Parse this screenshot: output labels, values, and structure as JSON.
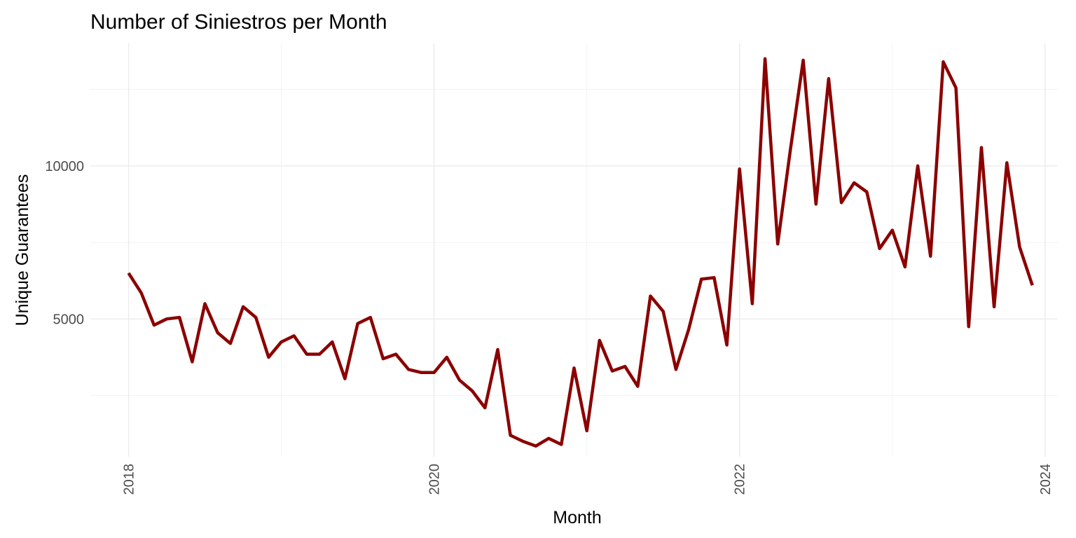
{
  "chart_data": {
    "type": "line",
    "title": "Number of Siniestros per Month",
    "xlabel": "Month",
    "ylabel": "Unique Guarantees",
    "line_color": "#8b0000",
    "grid": true,
    "legend": "none",
    "x_range": [
      "2017-10",
      "2024-02"
    ],
    "ylim": [
      500,
      14000
    ],
    "x_ticks": [
      "2018",
      "2020",
      "2022",
      "2024"
    ],
    "y_ticks": [
      5000,
      10000
    ],
    "x": [
      "2018-01",
      "2018-02",
      "2018-03",
      "2018-04",
      "2018-05",
      "2018-06",
      "2018-07",
      "2018-08",
      "2018-09",
      "2018-10",
      "2018-11",
      "2018-12",
      "2019-01",
      "2019-02",
      "2019-03",
      "2019-04",
      "2019-05",
      "2019-06",
      "2019-07",
      "2019-08",
      "2019-09",
      "2019-10",
      "2019-11",
      "2019-12",
      "2020-01",
      "2020-02",
      "2020-03",
      "2020-04",
      "2020-05",
      "2020-06",
      "2020-07",
      "2020-08",
      "2020-09",
      "2020-10",
      "2020-11",
      "2020-12",
      "2021-01",
      "2021-02",
      "2021-03",
      "2021-04",
      "2021-05",
      "2021-06",
      "2021-07",
      "2021-08",
      "2021-09",
      "2021-10",
      "2021-11",
      "2021-12",
      "2022-01",
      "2022-02",
      "2022-03",
      "2022-04",
      "2022-05",
      "2022-06",
      "2022-07",
      "2022-08",
      "2022-09",
      "2022-10",
      "2022-11",
      "2022-12",
      "2023-01",
      "2023-02",
      "2023-03",
      "2023-04",
      "2023-05",
      "2023-06",
      "2023-07",
      "2023-08",
      "2023-09",
      "2023-10",
      "2023-11",
      "2023-12"
    ],
    "series": [
      {
        "values": [
          6500,
          5850,
          4800,
          5000,
          5050,
          3600,
          5500,
          4550,
          4200,
          5400,
          5050,
          3750,
          4250,
          4450,
          3850,
          3850,
          4250,
          3050,
          4850,
          5050,
          3700,
          3850,
          3350,
          3250,
          3250,
          3750,
          3000,
          2650,
          2100,
          4000,
          1200,
          1000,
          850,
          1100,
          900,
          3400,
          1350,
          4300,
          3300,
          3450,
          2800,
          5750,
          5250,
          3350,
          4650,
          6300,
          6350,
          4150,
          9900,
          5500,
          13500,
          7450,
          10550,
          13450,
          8750,
          12850,
          8800,
          9450,
          9150,
          7300,
          7900,
          6700,
          10000,
          7050,
          13400,
          12550,
          4750,
          10600,
          5400,
          10100,
          7350,
          6100
        ]
      }
    ]
  }
}
